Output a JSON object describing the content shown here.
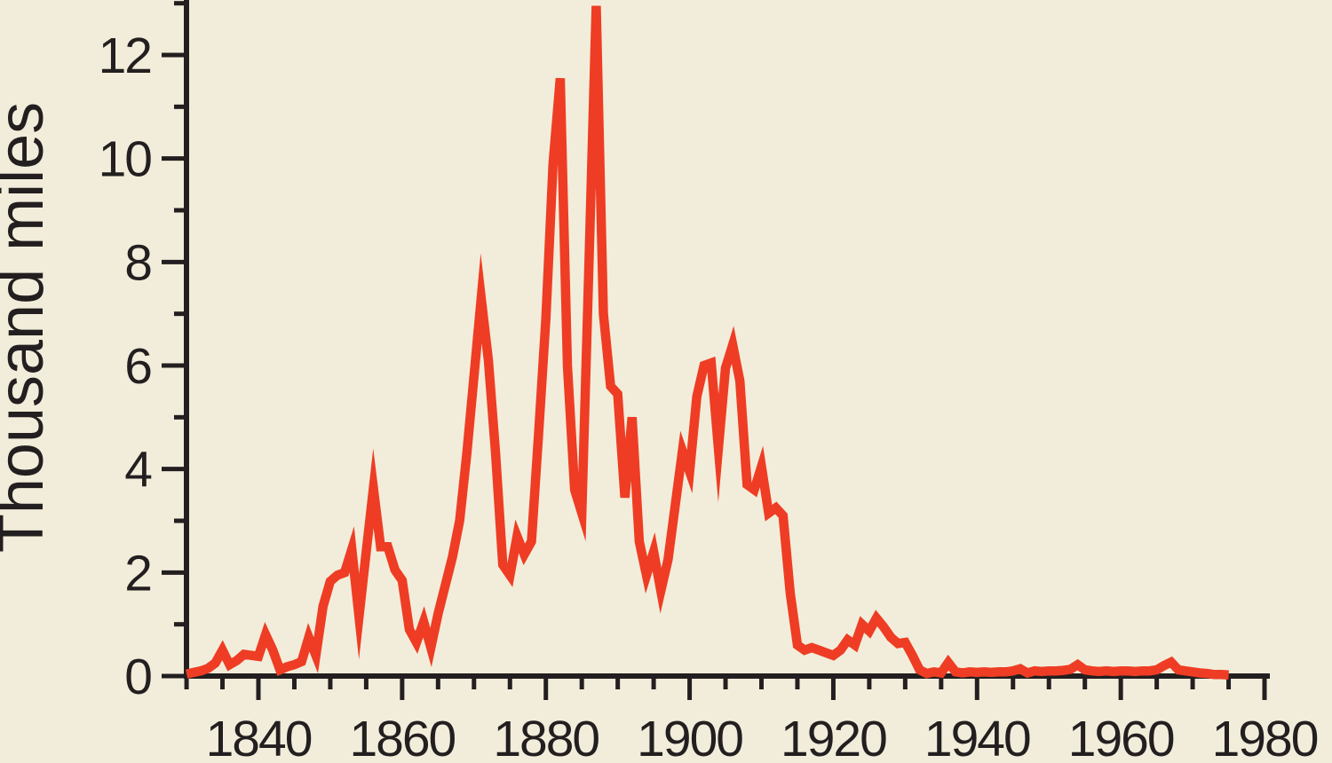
{
  "chart_data": {
    "type": "line",
    "title": "",
    "xlabel": "",
    "ylabel": "Thousand miles",
    "x_range": [
      1830,
      1980
    ],
    "ylim": [
      0,
      13
    ],
    "grid": false,
    "legend": null,
    "y_ticks_major": [
      0,
      2,
      4,
      6,
      8,
      10,
      12
    ],
    "y_ticks_minor": [
      1,
      3,
      5,
      7,
      9,
      11,
      13
    ],
    "x_ticks_major": [
      1840,
      1860,
      1880,
      1900,
      1920,
      1940,
      1960,
      1980
    ],
    "x_tick_minor_step": 5,
    "colors": {
      "line": "#ee3d24",
      "background": "#f2edda",
      "axis": "#231f20",
      "text": "#231f20"
    },
    "series": [
      {
        "x": [
          1830,
          1831,
          1832,
          1833,
          1834,
          1835,
          1836,
          1837,
          1838,
          1839,
          1840,
          1841,
          1842,
          1843,
          1844,
          1845,
          1846,
          1847,
          1848,
          1849,
          1850,
          1851,
          1852,
          1853,
          1854,
          1855,
          1856,
          1857,
          1858,
          1859,
          1860,
          1861,
          1862,
          1863,
          1864,
          1865,
          1866,
          1867,
          1868,
          1869,
          1870,
          1871,
          1872,
          1873,
          1874,
          1875,
          1876,
          1877,
          1878,
          1879,
          1880,
          1881,
          1882,
          1883,
          1884,
          1885,
          1886,
          1887,
          1888,
          1889,
          1890,
          1891,
          1892,
          1893,
          1894,
          1895,
          1896,
          1897,
          1898,
          1899,
          1900,
          1901,
          1902,
          1903,
          1904,
          1905,
          1906,
          1907,
          1908,
          1909,
          1910,
          1911,
          1912,
          1913,
          1914,
          1915,
          1916,
          1917,
          1918,
          1919,
          1920,
          1921,
          1922,
          1923,
          1924,
          1925,
          1926,
          1927,
          1928,
          1929,
          1930,
          1931,
          1932,
          1933,
          1934,
          1935,
          1936,
          1937,
          1938,
          1939,
          1940,
          1941,
          1942,
          1943,
          1944,
          1945,
          1946,
          1947,
          1948,
          1949,
          1950,
          1951,
          1952,
          1953,
          1954,
          1955,
          1956,
          1957,
          1958,
          1959,
          1960,
          1961,
          1962,
          1963,
          1964,
          1965,
          1966,
          1967,
          1968,
          1969,
          1970,
          1971,
          1972,
          1973,
          1974,
          1975
        ],
        "values": [
          0.04,
          0.07,
          0.1,
          0.15,
          0.25,
          0.5,
          0.22,
          0.3,
          0.42,
          0.4,
          0.38,
          0.8,
          0.5,
          0.12,
          0.18,
          0.22,
          0.28,
          0.75,
          0.4,
          1.35,
          1.83,
          1.95,
          2.0,
          2.45,
          1.15,
          2.4,
          3.63,
          2.5,
          2.5,
          2.05,
          1.85,
          0.9,
          0.65,
          1.05,
          0.55,
          1.2,
          1.75,
          2.3,
          3.0,
          4.3,
          5.8,
          7.3,
          6.1,
          4.3,
          2.15,
          1.95,
          2.7,
          2.35,
          2.6,
          4.7,
          6.9,
          9.9,
          11.55,
          6.0,
          3.6,
          3.15,
          8.0,
          12.95,
          7.0,
          5.6,
          5.45,
          3.45,
          5.0,
          2.6,
          1.95,
          2.4,
          1.65,
          2.25,
          3.3,
          4.35,
          3.95,
          5.4,
          6.0,
          6.05,
          4.4,
          5.95,
          6.4,
          5.7,
          3.7,
          3.6,
          4.05,
          3.15,
          3.25,
          3.1,
          1.6,
          0.6,
          0.5,
          0.55,
          0.5,
          0.45,
          0.4,
          0.5,
          0.7,
          0.6,
          1.0,
          0.87,
          1.12,
          0.95,
          0.75,
          0.63,
          0.65,
          0.4,
          0.12,
          0.05,
          0.08,
          0.06,
          0.26,
          0.08,
          0.06,
          0.08,
          0.07,
          0.08,
          0.07,
          0.08,
          0.08,
          0.1,
          0.14,
          0.06,
          0.1,
          0.09,
          0.1,
          0.1,
          0.11,
          0.13,
          0.22,
          0.12,
          0.1,
          0.09,
          0.1,
          0.09,
          0.1,
          0.1,
          0.09,
          0.1,
          0.1,
          0.12,
          0.2,
          0.27,
          0.12,
          0.1,
          0.08,
          0.06,
          0.05,
          0.03,
          0.03,
          0.02
        ]
      }
    ]
  }
}
